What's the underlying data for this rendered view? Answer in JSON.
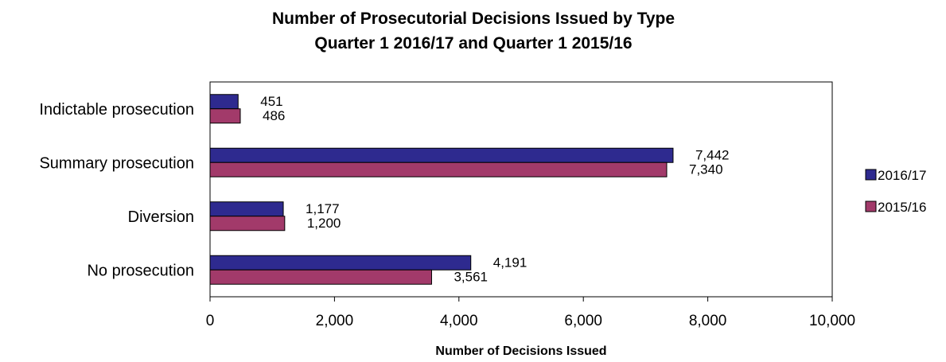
{
  "chart_data": {
    "type": "bar",
    "orientation": "horizontal",
    "title": "Number of Prosecutorial Decisions Issued by Type",
    "subtitle": "Quarter 1 2016/17 and Quarter 1 2015/16",
    "xlabel": "Number of Decisions Issued",
    "ylabel": "",
    "xlim": [
      0,
      10000
    ],
    "xticks": [
      0,
      2000,
      4000,
      6000,
      8000,
      10000
    ],
    "xtick_labels": [
      "0",
      "2,000",
      "4,000",
      "6,000",
      "8,000",
      "10,000"
    ],
    "categories": [
      "Indictable prosecution",
      "Summary prosecution",
      "Diversion",
      "No prosecution"
    ],
    "series": [
      {
        "name": "2016/17",
        "color": "#2e2a8f",
        "values": [
          451,
          7442,
          1177,
          4191
        ],
        "labels": [
          "451",
          "7,442",
          "1,177",
          "4,191"
        ]
      },
      {
        "name": "2015/16",
        "color": "#a23a6a",
        "values": [
          486,
          7340,
          1200,
          3561
        ],
        "labels": [
          "486",
          "7,340",
          "1,200",
          "3,561"
        ]
      }
    ],
    "grid": false,
    "legend": "right"
  }
}
